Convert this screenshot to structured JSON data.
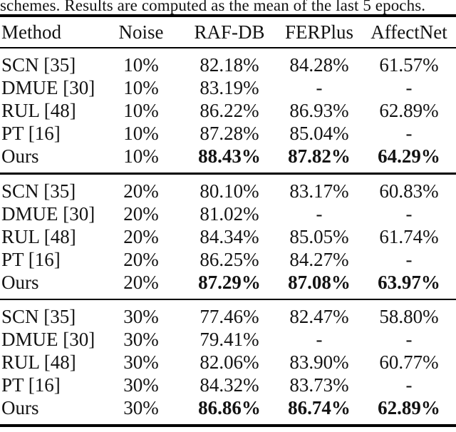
{
  "caption": "schemes. Results are computed as the mean of the last 5 epochs.",
  "colors": {
    "background": "#ffffff",
    "text": "#131313",
    "rule": "#000000"
  },
  "table": {
    "columns": [
      "Method",
      "Noise",
      "RAF-DB",
      "FERPlus",
      "AffectNet"
    ],
    "groups": [
      {
        "noise_level": "10%",
        "rows": [
          {
            "cells": [
              "SCN [35]",
              "10%",
              "82.18%",
              "84.28%",
              "61.57%"
            ],
            "bold_values": false
          },
          {
            "cells": [
              "DMUE [30]",
              "10%",
              "83.19%",
              "-",
              "-"
            ],
            "bold_values": false
          },
          {
            "cells": [
              "RUL [48]",
              "10%",
              "86.22%",
              "86.93%",
              "62.89%"
            ],
            "bold_values": false
          },
          {
            "cells": [
              "PT [16]",
              "10%",
              "87.28%",
              "85.04%",
              "-"
            ],
            "bold_values": false
          },
          {
            "cells": [
              "Ours",
              "10%",
              "88.43%",
              "87.82%",
              "64.29%"
            ],
            "bold_values": true
          }
        ]
      },
      {
        "noise_level": "20%",
        "rows": [
          {
            "cells": [
              "SCN [35]",
              "20%",
              "80.10%",
              "83.17%",
              "60.83%"
            ],
            "bold_values": false
          },
          {
            "cells": [
              "DMUE [30]",
              "20%",
              "81.02%",
              "-",
              "-"
            ],
            "bold_values": false
          },
          {
            "cells": [
              "RUL [48]",
              "20%",
              "84.34%",
              "85.05%",
              "61.74%"
            ],
            "bold_values": false
          },
          {
            "cells": [
              "PT [16]",
              "20%",
              "86.25%",
              "84.27%",
              "-"
            ],
            "bold_values": false
          },
          {
            "cells": [
              "Ours",
              "20%",
              "87.29%",
              "87.08%",
              "63.97%"
            ],
            "bold_values": true
          }
        ]
      },
      {
        "noise_level": "30%",
        "rows": [
          {
            "cells": [
              "SCN [35]",
              "30%",
              "77.46%",
              "82.47%",
              "58.80%"
            ],
            "bold_values": false
          },
          {
            "cells": [
              "DMUE [30]",
              "30%",
              "79.41%",
              "-",
              "-"
            ],
            "bold_values": false
          },
          {
            "cells": [
              "RUL [48]",
              "30%",
              "82.06%",
              "83.90%",
              "60.77%"
            ],
            "bold_values": false
          },
          {
            "cells": [
              "PT [16]",
              "30%",
              "84.32%",
              "83.73%",
              "-"
            ],
            "bold_values": false
          },
          {
            "cells": [
              "Ours",
              "30%",
              "86.86%",
              "86.74%",
              "62.89%"
            ],
            "bold_values": true
          }
        ]
      }
    ]
  }
}
